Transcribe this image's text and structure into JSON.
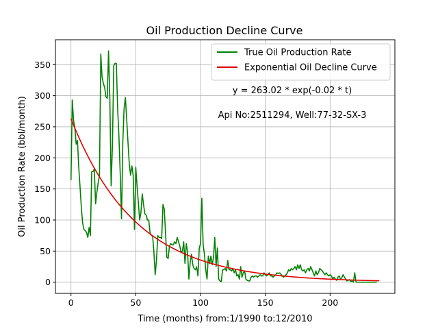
{
  "chart_data": {
    "type": "line",
    "title": "Oil Production Decline Curve",
    "xlabel": "Time (months) from:1/1990 to:12/2010",
    "ylabel": "Oil Production Rate (bbl/month)",
    "xlim": [
      -12,
      250
    ],
    "ylim": [
      -18,
      390
    ],
    "xticks": [
      0,
      50,
      100,
      150,
      200
    ],
    "yticks": [
      0,
      50,
      100,
      150,
      200,
      250,
      300,
      350
    ],
    "grid": true,
    "legend_position": "top-right",
    "annotations": [
      "y = 263.02 * exp(-0.02 * t)",
      "Api No:2511294, Well:77-32-SX-3"
    ],
    "colors": {
      "true_rate": "#008000",
      "decline": "#e00000",
      "grid": "#b0b0b0"
    },
    "series": [
      {
        "name": "True Oil Production Rate",
        "color": "#008000",
        "points": [
          [
            0,
            164
          ],
          [
            1,
            293
          ],
          [
            2,
            260
          ],
          [
            3,
            248
          ],
          [
            4,
            222
          ],
          [
            5,
            228
          ],
          [
            6,
            185
          ],
          [
            7,
            153
          ],
          [
            8,
            120
          ],
          [
            9,
            95
          ],
          [
            10,
            85
          ],
          [
            11,
            83
          ],
          [
            12,
            80
          ],
          [
            13,
            72
          ],
          [
            14,
            88
          ],
          [
            15,
            75
          ],
          [
            16,
            178
          ],
          [
            17,
            178
          ],
          [
            18,
            182
          ],
          [
            19,
            126
          ],
          [
            20,
            145
          ],
          [
            21,
            160
          ],
          [
            22,
            172
          ],
          [
            23,
            367
          ],
          [
            24,
            330
          ],
          [
            25,
            320
          ],
          [
            26,
            313
          ],
          [
            27,
            298
          ],
          [
            28,
            296
          ],
          [
            29,
            372
          ],
          [
            30,
            295
          ],
          [
            31,
            155
          ],
          [
            32,
            220
          ],
          [
            33,
            348
          ],
          [
            34,
            352
          ],
          [
            35,
            352
          ],
          [
            36,
            280
          ],
          [
            37,
            235
          ],
          [
            38,
            175
          ],
          [
            39,
            102
          ],
          [
            40,
            225
          ],
          [
            41,
            280
          ],
          [
            42,
            297
          ],
          [
            43,
            262
          ],
          [
            44,
            225
          ],
          [
            45,
            190
          ],
          [
            46,
            172
          ],
          [
            47,
            187
          ],
          [
            48,
            172
          ],
          [
            49,
            85
          ],
          [
            50,
            185
          ],
          [
            51,
            155
          ],
          [
            52,
            128
          ],
          [
            53,
            100
          ],
          [
            54,
            112
          ],
          [
            55,
            142
          ],
          [
            56,
            125
          ],
          [
            57,
            110
          ],
          [
            58,
            108
          ],
          [
            59,
            100
          ],
          [
            60,
            100
          ],
          [
            61,
            80
          ],
          [
            62,
            75
          ],
          [
            63,
            75
          ],
          [
            64,
            48
          ],
          [
            65,
            12
          ],
          [
            66,
            35
          ],
          [
            67,
            75
          ],
          [
            68,
            72
          ],
          [
            69,
            72
          ],
          [
            70,
            70
          ],
          [
            71,
            125
          ],
          [
            72,
            118
          ],
          [
            73,
            78
          ],
          [
            74,
            40
          ],
          [
            75,
            38
          ],
          [
            76,
            58
          ],
          [
            77,
            62
          ],
          [
            78,
            60
          ],
          [
            79,
            60
          ],
          [
            80,
            65
          ],
          [
            81,
            62
          ],
          [
            82,
            72
          ],
          [
            83,
            65
          ],
          [
            84,
            58
          ],
          [
            85,
            48
          ],
          [
            86,
            50
          ],
          [
            87,
            65
          ],
          [
            88,
            30
          ],
          [
            89,
            62
          ],
          [
            90,
            48
          ],
          [
            91,
            5
          ],
          [
            92,
            32
          ],
          [
            93,
            45
          ],
          [
            94,
            28
          ],
          [
            95,
            22
          ],
          [
            96,
            20
          ],
          [
            97,
            25
          ],
          [
            98,
            10
          ],
          [
            99,
            55
          ],
          [
            100,
            62
          ],
          [
            101,
            135
          ],
          [
            102,
            60
          ],
          [
            103,
            45
          ],
          [
            104,
            20
          ],
          [
            105,
            5
          ],
          [
            106,
            42
          ],
          [
            107,
            30
          ],
          [
            108,
            42
          ],
          [
            109,
            28
          ],
          [
            110,
            40
          ],
          [
            111,
            72
          ],
          [
            112,
            25
          ],
          [
            113,
            55
          ],
          [
            114,
            5
          ],
          [
            115,
            2
          ],
          [
            116,
            1
          ],
          [
            117,
            20
          ],
          [
            118,
            20
          ],
          [
            119,
            22
          ],
          [
            120,
            18
          ],
          [
            121,
            35
          ],
          [
            122,
            20
          ],
          [
            123,
            20
          ],
          [
            124,
            18
          ],
          [
            125,
            22
          ],
          [
            126,
            15
          ],
          [
            127,
            20
          ],
          [
            128,
            10
          ],
          [
            129,
            12
          ],
          [
            130,
            5
          ],
          [
            131,
            25
          ],
          [
            132,
            8
          ],
          [
            133,
            15
          ],
          [
            134,
            18
          ],
          [
            135,
            5
          ],
          [
            136,
            3
          ],
          [
            137,
            2
          ],
          [
            138,
            2
          ],
          [
            139,
            8
          ],
          [
            140,
            10
          ],
          [
            141,
            8
          ],
          [
            142,
            10
          ],
          [
            143,
            10
          ],
          [
            144,
            8
          ],
          [
            145,
            10
          ],
          [
            146,
            12
          ],
          [
            147,
            10
          ],
          [
            148,
            10
          ],
          [
            149,
            15
          ],
          [
            150,
            12
          ],
          [
            151,
            10
          ],
          [
            152,
            12
          ],
          [
            153,
            15
          ],
          [
            154,
            10
          ],
          [
            155,
            10
          ],
          [
            156,
            8
          ],
          [
            157,
            10
          ],
          [
            158,
            12
          ],
          [
            159,
            15
          ],
          [
            160,
            14
          ],
          [
            161,
            15
          ],
          [
            162,
            13
          ],
          [
            163,
            10
          ],
          [
            164,
            8
          ],
          [
            165,
            10
          ],
          [
            166,
            12
          ],
          [
            167,
            15
          ],
          [
            168,
            20
          ],
          [
            169,
            18
          ],
          [
            170,
            22
          ],
          [
            171,
            20
          ],
          [
            172,
            22
          ],
          [
            173,
            25
          ],
          [
            174,
            20
          ],
          [
            175,
            28
          ],
          [
            176,
            22
          ],
          [
            177,
            28
          ],
          [
            178,
            20
          ],
          [
            179,
            18
          ],
          [
            180,
            20
          ],
          [
            181,
            15
          ],
          [
            182,
            20
          ],
          [
            183,
            22
          ],
          [
            184,
            18
          ],
          [
            185,
            25
          ],
          [
            186,
            20
          ],
          [
            187,
            15
          ],
          [
            188,
            10
          ],
          [
            189,
            18
          ],
          [
            190,
            12
          ],
          [
            191,
            15
          ],
          [
            192,
            22
          ],
          [
            193,
            20
          ],
          [
            194,
            18
          ],
          [
            195,
            15
          ],
          [
            196,
            12
          ],
          [
            197,
            15
          ],
          [
            198,
            12
          ],
          [
            199,
            10
          ],
          [
            200,
            12
          ],
          [
            201,
            10
          ],
          [
            202,
            5
          ],
          [
            203,
            8
          ],
          [
            204,
            5
          ],
          [
            205,
            3
          ],
          [
            206,
            8
          ],
          [
            207,
            10
          ],
          [
            208,
            5
          ],
          [
            209,
            7
          ],
          [
            210,
            12
          ],
          [
            211,
            8
          ],
          [
            212,
            5
          ],
          [
            213,
            2
          ],
          [
            214,
            3
          ],
          [
            215,
            4
          ],
          [
            216,
            1
          ],
          [
            217,
            2
          ],
          [
            218,
            0
          ],
          [
            219,
            15
          ],
          [
            220,
            0
          ],
          [
            225,
            0
          ],
          [
            230,
            0
          ],
          [
            236,
            0
          ]
        ]
      },
      {
        "name": "Exponential Oil Decline Curve",
        "color": "#e00000",
        "equation": {
          "a": 263.02,
          "b": 0.02
        },
        "x_range": [
          0,
          238
        ]
      }
    ]
  }
}
